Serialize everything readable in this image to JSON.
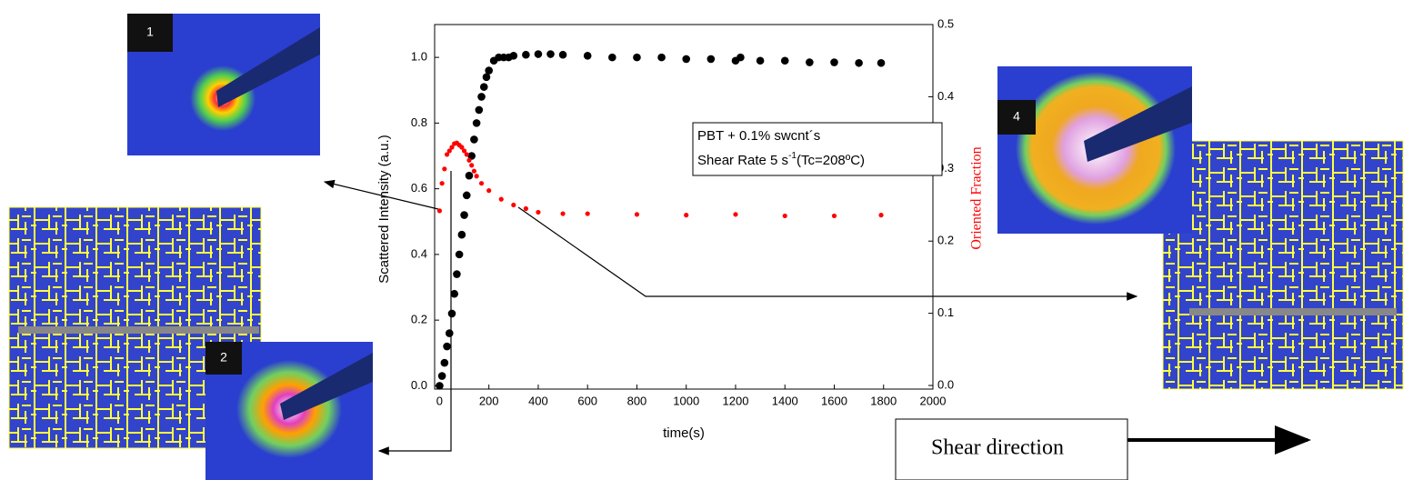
{
  "chart_data": {
    "type": "scatter",
    "annotation": [
      "PBT + 0.1% swcnt´s",
      "Shear Rate 5 s",
      "-1",
      "(Tc=208ºC)"
    ],
    "x_label": "time(s)",
    "y_label": "Scattered Intensity (a.u.)",
    "y2_label": "Oriented Fraction",
    "xlim": [
      -20,
      2000
    ],
    "xticks": [
      0,
      200,
      400,
      600,
      800,
      1000,
      1200,
      1400,
      1600,
      1800,
      2000
    ],
    "ylim": [
      -0.01,
      1.1
    ],
    "yticks": [
      {
        "value": 0,
        "label": "0.0"
      },
      0.2,
      0.4,
      0.6,
      0.8,
      {
        "value": 1,
        "label": "1.0"
      }
    ],
    "y2lim": [
      -0.005,
      0.5
    ],
    "y2ticks": [
      {
        "value": 0,
        "label": "0.0"
      },
      0.1,
      0.2,
      0.3,
      0.4,
      0.5
    ],
    "series": [
      {
        "color": "#000000",
        "axis": "y",
        "x": [
          0,
          10,
          20,
          30,
          40,
          50,
          60,
          70,
          80,
          90,
          100,
          110,
          120,
          130,
          140,
          150,
          160,
          170,
          180,
          190,
          200,
          220,
          240,
          260,
          280,
          300,
          350,
          400,
          450,
          500,
          600,
          700,
          800,
          900,
          1000,
          1100,
          1200,
          1220,
          1300,
          1400,
          1500,
          1600,
          1700,
          1790
        ],
        "values": [
          0.0,
          0.03,
          0.07,
          0.12,
          0.16,
          0.22,
          0.28,
          0.34,
          0.4,
          0.46,
          0.52,
          0.58,
          0.64,
          0.7,
          0.75,
          0.8,
          0.84,
          0.88,
          0.91,
          0.94,
          0.96,
          0.99,
          1.0,
          1.0,
          1.0,
          1.005,
          1.008,
          1.01,
          1.01,
          1.008,
          1.005,
          1.0,
          1.0,
          1.0,
          0.995,
          0.995,
          0.99,
          1.0,
          0.99,
          0.99,
          0.985,
          0.985,
          0.983,
          0.983
        ]
      },
      {
        "color": "#ff0000",
        "axis": "y2",
        "x": [
          0,
          10,
          20,
          30,
          40,
          50,
          60,
          70,
          80,
          90,
          100,
          110,
          120,
          130,
          140,
          150,
          170,
          200,
          250,
          300,
          350,
          400,
          500,
          600,
          800,
          1000,
          1200,
          1400,
          1600,
          1790
        ],
        "values": [
          0.242,
          0.28,
          0.3,
          0.32,
          0.325,
          0.33,
          0.335,
          0.336,
          0.333,
          0.33,
          0.325,
          0.32,
          0.312,
          0.305,
          0.297,
          0.29,
          0.28,
          0.27,
          0.258,
          0.25,
          0.245,
          0.24,
          0.238,
          0.238,
          0.237,
          0.236,
          0.237,
          0.235,
          0.235,
          0.236
        ]
      }
    ]
  },
  "insets": [
    {
      "label": "1"
    },
    {
      "label": "2"
    },
    {
      "label": "4"
    }
  ],
  "shear_label": "Shear direction"
}
